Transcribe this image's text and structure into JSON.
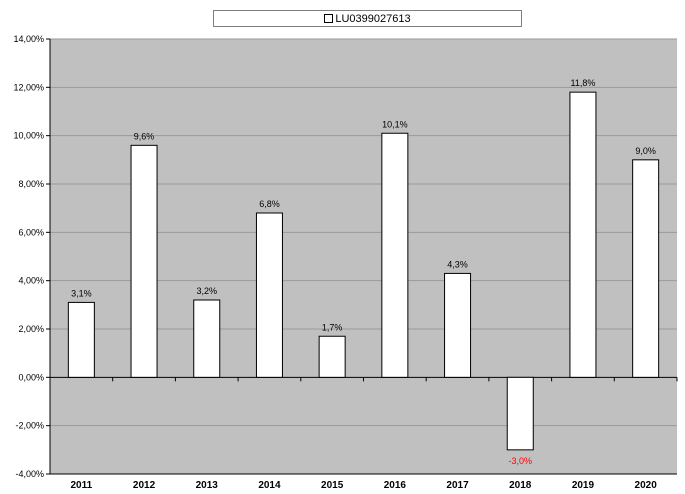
{
  "chart_data": {
    "type": "bar",
    "categories": [
      "2011",
      "2012",
      "2013",
      "2014",
      "2015",
      "2016",
      "2017",
      "2018",
      "2019",
      "2020"
    ],
    "series": [
      {
        "name": "LU0399027613",
        "values": [
          3.1,
          9.6,
          3.2,
          6.8,
          1.7,
          10.1,
          4.3,
          -3.0,
          11.8,
          9.0
        ],
        "labels": [
          "3,1%",
          "9,6%",
          "3,2%",
          "6,8%",
          "1,7%",
          "10,1%",
          "4,3%",
          "-3,0%",
          "11,8%",
          "9,0%"
        ]
      }
    ],
    "ylim": [
      -4,
      14
    ],
    "yticks": [
      -4,
      -2,
      0,
      2,
      4,
      6,
      8,
      10,
      12,
      14
    ],
    "ytick_labels": [
      "-4,00%",
      "-2,00%",
      "0,00%",
      "2,00%",
      "4,00%",
      "6,00%",
      "8,00%",
      "10,00%",
      "12,00%",
      "14,00%"
    ],
    "title": "",
    "xlabel": "",
    "ylabel": "",
    "grid": true,
    "legend_position": "top",
    "colors": {
      "plot_background": "#c0c0c0",
      "bar_fill": "#ffffff",
      "bar_stroke": "#000000",
      "gridline": "#9a9a9a",
      "negative_label": "#ff0000",
      "text": "#000000"
    }
  }
}
